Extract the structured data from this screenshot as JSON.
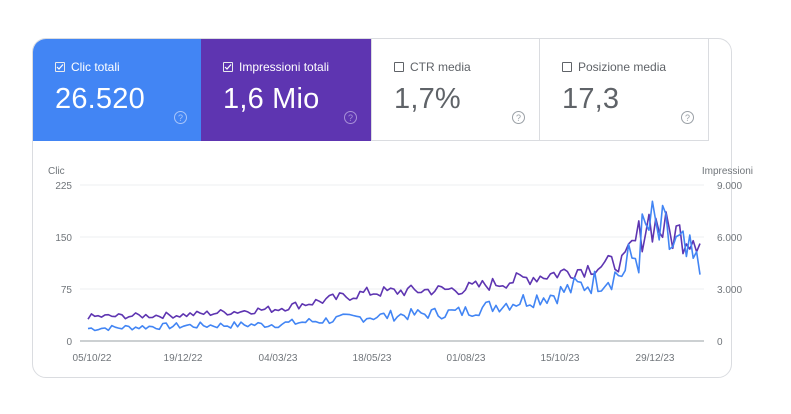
{
  "metrics": [
    {
      "label": "Clic totali",
      "value": "26.520",
      "checked": true,
      "color": "#4285f4",
      "help_icon": "help-circle-icon"
    },
    {
      "label": "Impressioni totali",
      "value": "1,6 Mio",
      "checked": true,
      "color": "#5e35b1",
      "help_icon": "help-circle-icon"
    },
    {
      "label": "CTR media",
      "value": "1,7%",
      "checked": false,
      "help_icon": "help-circle-icon"
    },
    {
      "label": "Posizione media",
      "value": "17,3",
      "checked": false,
      "help_icon": "help-circle-icon"
    }
  ],
  "chart_data": {
    "type": "line",
    "title": "",
    "xlabel": "",
    "ylabel_left": "Clic",
    "ylabel_right": "Impressioni",
    "y_left_ticks": [
      "0",
      "75",
      "150",
      "225"
    ],
    "y_right_ticks": [
      "0",
      "3.000",
      "6.000",
      "9.000"
    ],
    "ylim_left": [
      0,
      225
    ],
    "ylim_right": [
      0,
      9000
    ],
    "x_ticks": [
      "05/10/22",
      "19/12/22",
      "04/03/23",
      "18/05/23",
      "01/08/23",
      "15/10/23",
      "29/12/23"
    ],
    "x_range": [
      "05/10/22",
      "~08/02/24"
    ],
    "grid": true,
    "legend": "metric tiles above chart",
    "series": [
      {
        "name": "Clic",
        "axis": "left",
        "color": "#4285f4",
        "approx_points": [
          {
            "date": "05/10/22",
            "value": 18
          },
          {
            "date": "19/12/22",
            "value": 22
          },
          {
            "date": "04/03/23",
            "value": 24
          },
          {
            "date": "18/05/23",
            "value": 35
          },
          {
            "date": "01/08/23",
            "value": 42
          },
          {
            "date": "15/10/23",
            "value": 68
          },
          {
            "date": "10/12/23",
            "value": 100
          },
          {
            "date": "29/12/23",
            "value": 160
          },
          {
            "date": "15/01/24",
            "value": 140
          },
          {
            "date": "08/02/24",
            "value": 100
          }
        ]
      },
      {
        "name": "Impressioni",
        "axis": "right",
        "color": "#5e35b1",
        "approx_points": [
          {
            "date": "05/10/22",
            "value": 1400
          },
          {
            "date": "19/12/22",
            "value": 1500
          },
          {
            "date": "04/03/23",
            "value": 1850
          },
          {
            "date": "18/05/23",
            "value": 2800
          },
          {
            "date": "01/08/23",
            "value": 3000
          },
          {
            "date": "15/10/23",
            "value": 3900
          },
          {
            "date": "10/12/23",
            "value": 4600
          },
          {
            "date": "29/12/23",
            "value": 7000
          },
          {
            "date": "15/01/24",
            "value": 6200
          },
          {
            "date": "08/02/24",
            "value": 6200
          }
        ]
      }
    ]
  }
}
